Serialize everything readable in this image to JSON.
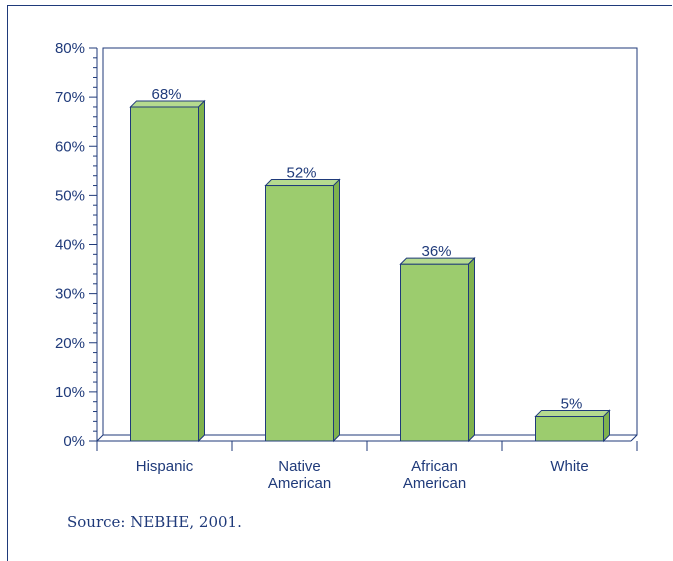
{
  "chart_data": {
    "type": "bar",
    "categories": [
      [
        "Hispanic"
      ],
      [
        "Native",
        "American"
      ],
      [
        "African",
        "American"
      ],
      [
        "White"
      ]
    ],
    "values": [
      68,
      52,
      36,
      5
    ],
    "value_labels": [
      "68%",
      "52%",
      "36%",
      "5%"
    ],
    "yticks": [
      "0%",
      "10%",
      "20%",
      "30%",
      "40%",
      "50%",
      "60%",
      "70%",
      "80%"
    ],
    "ylim": [
      0,
      80
    ],
    "bar_color": "#9ccc6e",
    "bar_side_color": "#7fb24d",
    "bar_top_color": "#b5da8f",
    "line_color": "#1f3a7a",
    "text_color": "#1f3a7a",
    "grid": false,
    "style": "3d-bar"
  },
  "source": "Source: NEBHE, 2001."
}
